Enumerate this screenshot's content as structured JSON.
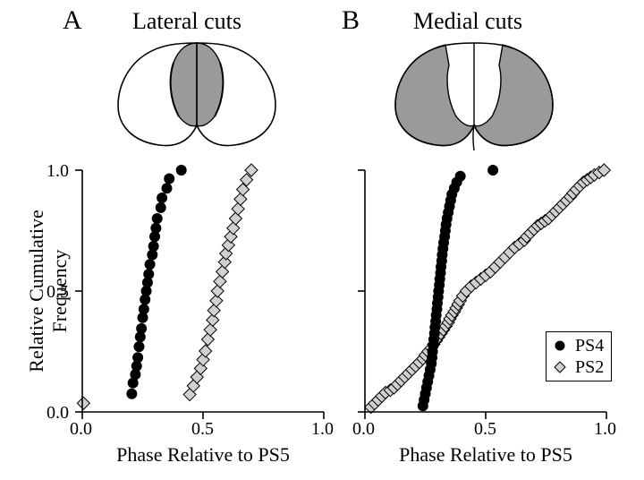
{
  "panels": {
    "A": {
      "letter": "A",
      "title": "Lateral cuts"
    },
    "B": {
      "letter": "B",
      "title": "Medial cuts"
    }
  },
  "axes": {
    "xlabel": "Phase Relative to PS5",
    "ylabel": "Relative Cumulative Frequency",
    "xlim": [
      0.0,
      1.0
    ],
    "ylim": [
      0.0,
      1.0
    ],
    "xticks": [
      0.0,
      0.5,
      1.0
    ],
    "yticks": [
      0.0,
      0.5,
      1.0
    ],
    "xtick_labels": [
      "0.0",
      "0.5",
      "1.0"
    ],
    "ytick_labels": [
      "0.0",
      "0.5",
      "1.0"
    ],
    "tick_fontsize": 20,
    "label_fontsize": 22
  },
  "colors": {
    "background": "#ffffff",
    "axis": "#000000",
    "ps4_fill": "#000000",
    "ps4_stroke": "#000000",
    "ps2_fill": "#d0d0d0",
    "ps2_stroke": "#000000",
    "diagram_fill": "#9a9a9a",
    "diagram_stroke": "#000000"
  },
  "markers": {
    "ps4": {
      "shape": "circle",
      "size": 6
    },
    "ps2": {
      "shape": "diamond",
      "size": 7
    }
  },
  "legend": {
    "items": [
      {
        "label": "PS4",
        "series": "ps4"
      },
      {
        "label": "PS2",
        "series": "ps2"
      }
    ]
  },
  "chartA": {
    "type": "scatter_cumulative",
    "ps4": [
      [
        0.205,
        0.075
      ],
      [
        0.21,
        0.12
      ],
      [
        0.22,
        0.155
      ],
      [
        0.225,
        0.19
      ],
      [
        0.23,
        0.225
      ],
      [
        0.235,
        0.27
      ],
      [
        0.24,
        0.31
      ],
      [
        0.245,
        0.345
      ],
      [
        0.25,
        0.39
      ],
      [
        0.255,
        0.425
      ],
      [
        0.26,
        0.465
      ],
      [
        0.265,
        0.5
      ],
      [
        0.27,
        0.535
      ],
      [
        0.275,
        0.57
      ],
      [
        0.28,
        0.61
      ],
      [
        0.29,
        0.65
      ],
      [
        0.295,
        0.685
      ],
      [
        0.3,
        0.725
      ],
      [
        0.305,
        0.76
      ],
      [
        0.31,
        0.8
      ],
      [
        0.325,
        0.845
      ],
      [
        0.33,
        0.885
      ],
      [
        0.35,
        0.925
      ],
      [
        0.36,
        0.965
      ],
      [
        0.41,
        1.0
      ]
    ],
    "ps2": [
      [
        0.005,
        0.036
      ],
      [
        0.445,
        0.072
      ],
      [
        0.46,
        0.108
      ],
      [
        0.475,
        0.144
      ],
      [
        0.49,
        0.18
      ],
      [
        0.5,
        0.216
      ],
      [
        0.51,
        0.252
      ],
      [
        0.52,
        0.3
      ],
      [
        0.53,
        0.34
      ],
      [
        0.54,
        0.38
      ],
      [
        0.545,
        0.42
      ],
      [
        0.555,
        0.46
      ],
      [
        0.56,
        0.5
      ],
      [
        0.57,
        0.54
      ],
      [
        0.58,
        0.58
      ],
      [
        0.59,
        0.62
      ],
      [
        0.595,
        0.655
      ],
      [
        0.605,
        0.69
      ],
      [
        0.615,
        0.725
      ],
      [
        0.625,
        0.76
      ],
      [
        0.635,
        0.8
      ],
      [
        0.645,
        0.84
      ],
      [
        0.655,
        0.88
      ],
      [
        0.665,
        0.92
      ],
      [
        0.68,
        0.96
      ],
      [
        0.7,
        1.0
      ]
    ]
  },
  "chartB": {
    "type": "scatter_cumulative",
    "ps4": [
      [
        0.24,
        0.025
      ],
      [
        0.245,
        0.05
      ],
      [
        0.25,
        0.075
      ],
      [
        0.255,
        0.1
      ],
      [
        0.26,
        0.125
      ],
      [
        0.265,
        0.15
      ],
      [
        0.27,
        0.175
      ],
      [
        0.275,
        0.2
      ],
      [
        0.278,
        0.225
      ],
      [
        0.28,
        0.25
      ],
      [
        0.283,
        0.275
      ],
      [
        0.285,
        0.3
      ],
      [
        0.288,
        0.325
      ],
      [
        0.29,
        0.35
      ],
      [
        0.293,
        0.375
      ],
      [
        0.295,
        0.4
      ],
      [
        0.298,
        0.425
      ],
      [
        0.3,
        0.45
      ],
      [
        0.303,
        0.475
      ],
      [
        0.305,
        0.5
      ],
      [
        0.308,
        0.525
      ],
      [
        0.31,
        0.55
      ],
      [
        0.313,
        0.575
      ],
      [
        0.315,
        0.6
      ],
      [
        0.318,
        0.625
      ],
      [
        0.32,
        0.65
      ],
      [
        0.323,
        0.675
      ],
      [
        0.326,
        0.7
      ],
      [
        0.33,
        0.725
      ],
      [
        0.333,
        0.75
      ],
      [
        0.336,
        0.775
      ],
      [
        0.34,
        0.8
      ],
      [
        0.345,
        0.825
      ],
      [
        0.35,
        0.85
      ],
      [
        0.355,
        0.875
      ],
      [
        0.36,
        0.9
      ],
      [
        0.37,
        0.925
      ],
      [
        0.38,
        0.95
      ],
      [
        0.395,
        0.975
      ],
      [
        0.53,
        1.0
      ]
    ],
    "ps2": [
      [
        0.025,
        0.02
      ],
      [
        0.04,
        0.035
      ],
      [
        0.055,
        0.05
      ],
      [
        0.07,
        0.065
      ],
      [
        0.085,
        0.08
      ],
      [
        0.105,
        0.09
      ],
      [
        0.12,
        0.1
      ],
      [
        0.135,
        0.115
      ],
      [
        0.15,
        0.13
      ],
      [
        0.165,
        0.145
      ],
      [
        0.18,
        0.16
      ],
      [
        0.195,
        0.175
      ],
      [
        0.21,
        0.19
      ],
      [
        0.225,
        0.205
      ],
      [
        0.24,
        0.22
      ],
      [
        0.25,
        0.235
      ],
      [
        0.262,
        0.25
      ],
      [
        0.275,
        0.265
      ],
      [
        0.285,
        0.28
      ],
      [
        0.295,
        0.295
      ],
      [
        0.305,
        0.31
      ],
      [
        0.315,
        0.325
      ],
      [
        0.325,
        0.34
      ],
      [
        0.335,
        0.355
      ],
      [
        0.345,
        0.37
      ],
      [
        0.352,
        0.385
      ],
      [
        0.36,
        0.4
      ],
      [
        0.37,
        0.415
      ],
      [
        0.378,
        0.43
      ],
      [
        0.386,
        0.445
      ],
      [
        0.394,
        0.46
      ],
      [
        0.405,
        0.48
      ],
      [
        0.42,
        0.5
      ],
      [
        0.44,
        0.52
      ],
      [
        0.46,
        0.535
      ],
      [
        0.48,
        0.55
      ],
      [
        0.5,
        0.565
      ],
      [
        0.52,
        0.58
      ],
      [
        0.54,
        0.6
      ],
      [
        0.56,
        0.62
      ],
      [
        0.58,
        0.64
      ],
      [
        0.6,
        0.66
      ],
      [
        0.62,
        0.68
      ],
      [
        0.64,
        0.695
      ],
      [
        0.66,
        0.71
      ],
      [
        0.67,
        0.725
      ],
      [
        0.685,
        0.74
      ],
      [
        0.7,
        0.755
      ],
      [
        0.715,
        0.77
      ],
      [
        0.73,
        0.78
      ],
      [
        0.745,
        0.79
      ],
      [
        0.76,
        0.8
      ],
      [
        0.775,
        0.815
      ],
      [
        0.79,
        0.83
      ],
      [
        0.805,
        0.845
      ],
      [
        0.82,
        0.86
      ],
      [
        0.835,
        0.875
      ],
      [
        0.85,
        0.89
      ],
      [
        0.862,
        0.905
      ],
      [
        0.875,
        0.92
      ],
      [
        0.89,
        0.935
      ],
      [
        0.905,
        0.95
      ],
      [
        0.92,
        0.96
      ],
      [
        0.935,
        0.97
      ],
      [
        0.95,
        0.98
      ],
      [
        0.97,
        0.99
      ],
      [
        0.99,
        1.0
      ]
    ]
  }
}
